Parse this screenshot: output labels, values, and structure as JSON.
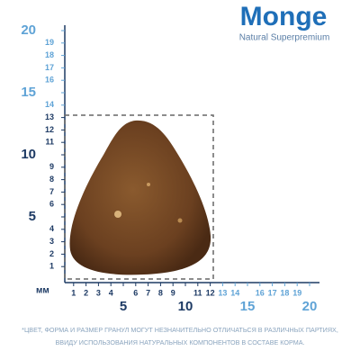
{
  "header": {
    "brand": "Monge",
    "tagline": "Natural Superpremium"
  },
  "ruler": {
    "unit": "мм",
    "y_labels": [
      1,
      2,
      3,
      4,
      5,
      6,
      7,
      8,
      9,
      10,
      11,
      12,
      13,
      14,
      15,
      16,
      17,
      18,
      19,
      20
    ],
    "x_labels": [
      1,
      2,
      3,
      4,
      5,
      6,
      7,
      8,
      9,
      10,
      11,
      12,
      13,
      14,
      15,
      16,
      17,
      18,
      19,
      20
    ]
  },
  "footer": {
    "lines": [
      "*ЦВЕТ, ФОРМА И РАЗМЕР ГРАНУЛ МОГУТ НЕЗНАЧИТЕЛЬНО ОТЛИЧАТЬСЯ В РАЗЛИЧНЫХ ПАРТИЯХ,",
      "ВВИДУ ИСПОЛЬЗОВАНИЯ НАТУРАЛЬНЫХ КОМПОНЕНТОВ В СОСТАВЕ КОРМА."
    ]
  }
}
